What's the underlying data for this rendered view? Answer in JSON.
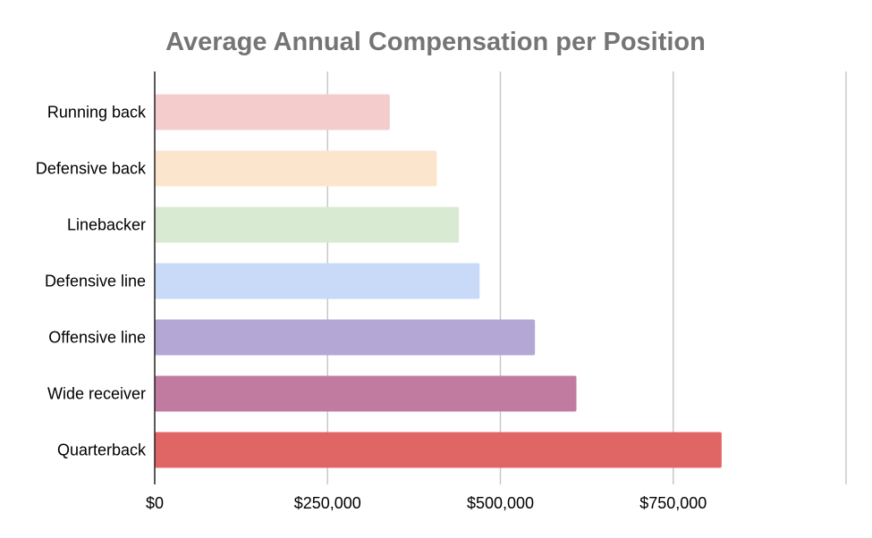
{
  "chart_data": {
    "type": "bar",
    "orientation": "horizontal",
    "title": "Average Annual Compensation per Position",
    "xlabel": "",
    "ylabel": "",
    "categories": [
      "Running back",
      "Defensive back",
      "Linebacker",
      "Defensive line",
      "Offensive line",
      "Wide receiver",
      "Quarterback"
    ],
    "values": [
      340000,
      408000,
      440000,
      470000,
      550000,
      610000,
      820000
    ],
    "colors": [
      "#f4cccc",
      "#fce5cd",
      "#d9ead3",
      "#c9daf8",
      "#b4a7d6",
      "#c27ba0",
      "#e06666"
    ],
    "xlim": [
      0,
      1000000
    ],
    "xticks": [
      0,
      250000,
      500000,
      750000,
      1000000
    ],
    "xtick_labels": [
      "$0",
      "$250,000",
      "$500,000",
      "$750,000",
      ""
    ],
    "grid": true,
    "legend": "none"
  }
}
